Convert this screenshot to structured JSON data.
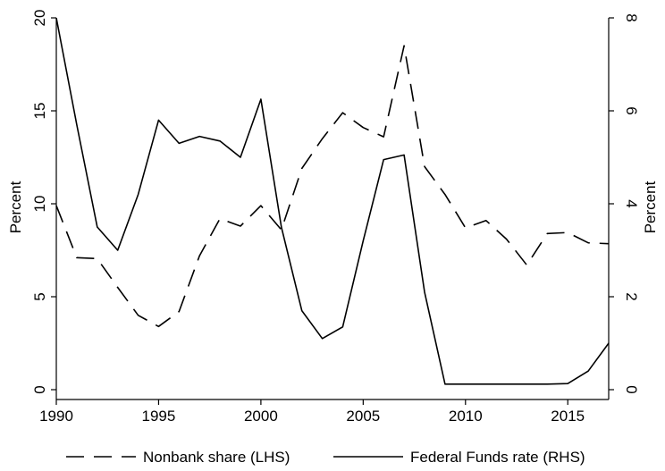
{
  "chart_data": {
    "type": "line",
    "x": [
      1990,
      1991,
      1992,
      1993,
      1994,
      1995,
      1996,
      1997,
      1998,
      1999,
      2000,
      2001,
      2002,
      2003,
      2004,
      2005,
      2006,
      2007,
      2008,
      2009,
      2010,
      2011,
      2012,
      2013,
      2014,
      2015,
      2016,
      2017
    ],
    "series": [
      {
        "name": "Nonbank share (LHS)",
        "axis": "left",
        "dash": "long-dash",
        "values": [
          9.9,
          7.1,
          7.05,
          5.5,
          4.0,
          3.4,
          4.2,
          7.2,
          9.2,
          8.8,
          9.9,
          8.6,
          11.9,
          13.5,
          14.9,
          14.1,
          13.6,
          18.5,
          12.0,
          10.5,
          8.7,
          9.1,
          8.1,
          6.7,
          8.4,
          8.45,
          7.9,
          7.85
        ]
      },
      {
        "name": "Federal Funds rate (RHS)",
        "axis": "right",
        "dash": "solid",
        "values": [
          8.0,
          5.7,
          3.5,
          3.0,
          4.2,
          5.8,
          5.3,
          5.45,
          5.35,
          5.0,
          6.25,
          3.5,
          1.7,
          1.1,
          1.35,
          3.2,
          4.95,
          5.05,
          2.1,
          0.12,
          0.12,
          0.12,
          0.12,
          0.12,
          0.12,
          0.13,
          0.4,
          1.0
        ]
      }
    ],
    "xlim": [
      1990,
      2017
    ],
    "xticks": [
      "1990",
      "1995",
      "2000",
      "2005",
      "2010",
      "2015"
    ],
    "ylim_left": [
      0,
      20
    ],
    "yticks_left": [
      "0",
      "5",
      "10",
      "15",
      "20"
    ],
    "ylim_right": [
      0,
      8
    ],
    "yticks_right": [
      "0",
      "2",
      "4",
      "6",
      "8"
    ],
    "ylabel_left": "Percent",
    "ylabel_right": "Percent",
    "grid": false,
    "legend_position": "bottom",
    "line_color": "#000000"
  }
}
